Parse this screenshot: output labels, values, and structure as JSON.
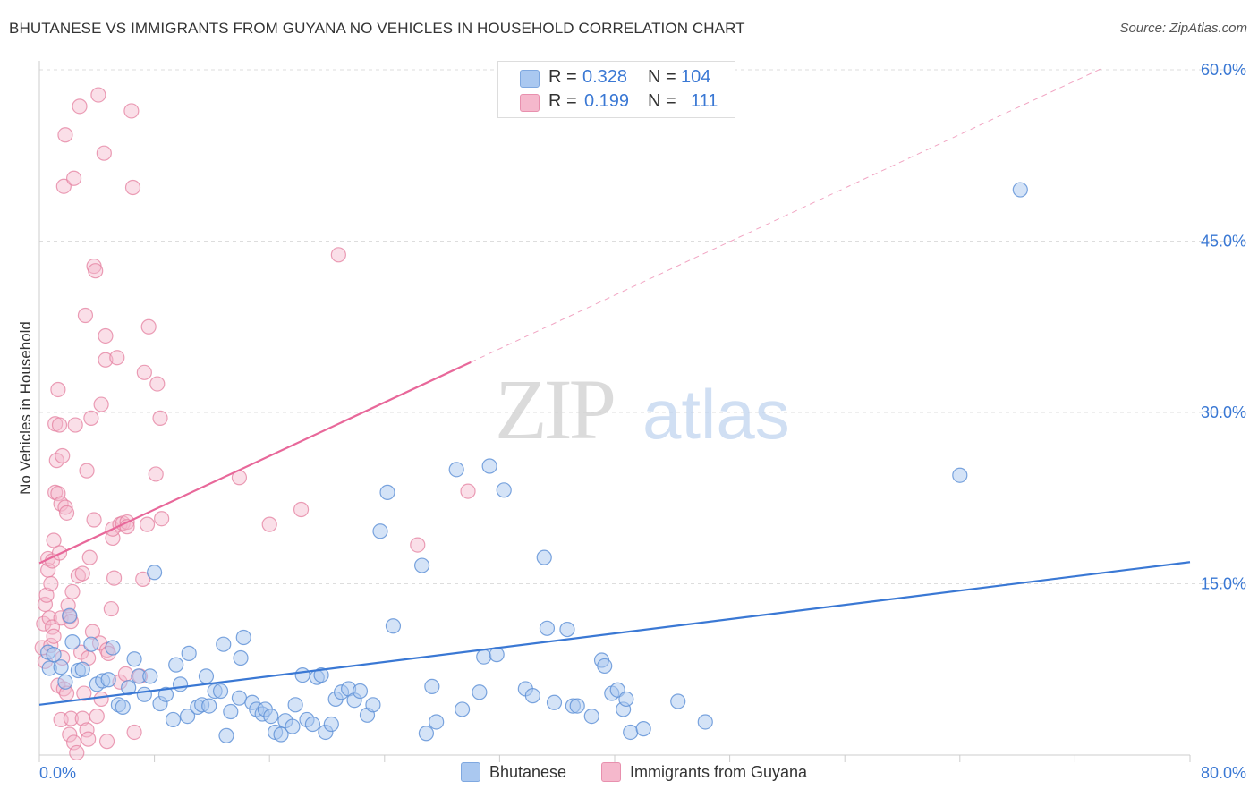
{
  "title": "BHUTANESE VS IMMIGRANTS FROM GUYANA NO VEHICLES IN HOUSEHOLD CORRELATION CHART",
  "source": "Source: ZipAtlas.com",
  "watermark": {
    "zip": "ZIP",
    "atlas": "atlas"
  },
  "legend_top": {
    "rows": [
      {
        "r_label": "R =",
        "r_value": "0.328",
        "n_label": "N =",
        "n_value": "104",
        "color": "#aac8f0"
      },
      {
        "r_label": "R =",
        "r_value": "0.199",
        "n_label": "N =",
        "n_value": "111",
        "color": "#f5b8cc"
      }
    ]
  },
  "legend_bottom": [
    {
      "label": "Bhutanese",
      "color": "#aac8f0"
    },
    {
      "label": "Immigrants from Guyana",
      "color": "#f5b8cc"
    }
  ],
  "chart_data": {
    "type": "scatter",
    "title": "BHUTANESE VS IMMIGRANTS FROM GUYANA NO VEHICLES IN HOUSEHOLD CORRELATION CHART",
    "xlabel": "",
    "ylabel": "No Vehicles in Household",
    "xlim": [
      0,
      80
    ],
    "ylim": [
      0,
      60
    ],
    "x_tick_labels": [
      "0.0%",
      "80.0%"
    ],
    "y_tick_labels": [
      "15.0%",
      "30.0%",
      "45.0%",
      "60.0%"
    ],
    "y_ticks": [
      15,
      30,
      45,
      60
    ],
    "colors": {
      "bhutanese_fill": "#aac8f0",
      "bhutanese_stroke": "#5b8fd6",
      "guyana_fill": "#f5b8cc",
      "guyana_stroke": "#e47f9f",
      "blue_line": "#3a78d4",
      "pink_line": "#e8689a",
      "tick_label": "#3a78d4",
      "grid": "#dddddd"
    },
    "series": [
      {
        "name": "Bhutanese",
        "trend": {
          "x0": 0,
          "y0": 4.4,
          "x1": 80,
          "y1": 16.9
        },
        "points": [
          [
            0.6,
            9.0
          ],
          [
            0.7,
            7.6
          ],
          [
            1.0,
            8.8
          ],
          [
            1.5,
            7.7
          ],
          [
            1.8,
            6.4
          ],
          [
            2.1,
            12.2
          ],
          [
            2.3,
            9.9
          ],
          [
            2.7,
            7.4
          ],
          [
            3.0,
            7.5
          ],
          [
            3.6,
            9.7
          ],
          [
            4.0,
            6.2
          ],
          [
            4.4,
            6.5
          ],
          [
            4.8,
            6.6
          ],
          [
            5.1,
            9.4
          ],
          [
            5.5,
            4.4
          ],
          [
            5.8,
            4.2
          ],
          [
            6.2,
            5.9
          ],
          [
            6.6,
            8.4
          ],
          [
            6.9,
            6.9
          ],
          [
            7.3,
            5.3
          ],
          [
            7.7,
            6.9
          ],
          [
            8.0,
            16.0
          ],
          [
            8.4,
            4.5
          ],
          [
            8.8,
            5.3
          ],
          [
            9.3,
            3.1
          ],
          [
            9.5,
            7.9
          ],
          [
            9.8,
            6.2
          ],
          [
            10.3,
            3.4
          ],
          [
            10.4,
            8.9
          ],
          [
            11.0,
            4.2
          ],
          [
            11.3,
            4.4
          ],
          [
            11.6,
            6.9
          ],
          [
            11.8,
            4.3
          ],
          [
            12.2,
            5.6
          ],
          [
            12.6,
            5.6
          ],
          [
            12.8,
            9.7
          ],
          [
            13.0,
            1.7
          ],
          [
            13.3,
            3.8
          ],
          [
            13.9,
            5.0
          ],
          [
            14.0,
            8.5
          ],
          [
            14.2,
            10.3
          ],
          [
            14.8,
            4.6
          ],
          [
            15.1,
            4.0
          ],
          [
            15.5,
            3.6
          ],
          [
            15.7,
            4.0
          ],
          [
            16.1,
            3.4
          ],
          [
            16.4,
            2.0
          ],
          [
            16.8,
            1.8
          ],
          [
            17.1,
            3.0
          ],
          [
            17.6,
            2.5
          ],
          [
            17.8,
            4.4
          ],
          [
            18.3,
            7.0
          ],
          [
            18.6,
            3.1
          ],
          [
            19.0,
            2.7
          ],
          [
            19.3,
            6.8
          ],
          [
            19.6,
            7.0
          ],
          [
            19.9,
            2.0
          ],
          [
            20.3,
            2.7
          ],
          [
            20.6,
            4.9
          ],
          [
            21.0,
            5.5
          ],
          [
            21.5,
            5.8
          ],
          [
            21.9,
            4.8
          ],
          [
            22.3,
            5.6
          ],
          [
            22.8,
            3.5
          ],
          [
            23.2,
            4.4
          ],
          [
            23.7,
            19.6
          ],
          [
            24.2,
            23.0
          ],
          [
            24.6,
            11.3
          ],
          [
            26.6,
            16.6
          ],
          [
            26.9,
            1.9
          ],
          [
            27.3,
            6.0
          ],
          [
            27.6,
            2.9
          ],
          [
            29.0,
            25.0
          ],
          [
            29.4,
            4.0
          ],
          [
            30.6,
            5.5
          ],
          [
            30.9,
            8.6
          ],
          [
            31.3,
            25.3
          ],
          [
            31.8,
            8.8
          ],
          [
            32.3,
            23.2
          ],
          [
            33.8,
            5.8
          ],
          [
            34.3,
            5.2
          ],
          [
            35.1,
            17.3
          ],
          [
            35.3,
            11.1
          ],
          [
            35.8,
            4.6
          ],
          [
            36.7,
            11.0
          ],
          [
            37.1,
            4.3
          ],
          [
            37.4,
            4.3
          ],
          [
            38.4,
            3.4
          ],
          [
            39.1,
            8.3
          ],
          [
            39.3,
            7.8
          ],
          [
            39.8,
            5.4
          ],
          [
            40.2,
            5.7
          ],
          [
            40.6,
            4.0
          ],
          [
            40.8,
            4.9
          ],
          [
            41.1,
            2.0
          ],
          [
            42.0,
            2.3
          ],
          [
            44.4,
            4.7
          ],
          [
            46.3,
            2.9
          ],
          [
            64.0,
            24.5
          ],
          [
            68.2,
            49.5
          ]
        ]
      },
      {
        "name": "Immigrants from Guyana",
        "trend": {
          "x0": 0,
          "y0": 16.8,
          "x1": 30,
          "y1": 34.4,
          "dash_x1": 74,
          "dash_y1": 60.2
        },
        "points": [
          [
            0.2,
            9.4
          ],
          [
            0.3,
            11.5
          ],
          [
            0.4,
            13.2
          ],
          [
            0.4,
            8.2
          ],
          [
            0.5,
            14.0
          ],
          [
            0.6,
            16.2
          ],
          [
            0.6,
            17.2
          ],
          [
            0.7,
            12.0
          ],
          [
            0.8,
            15.0
          ],
          [
            0.8,
            9.6
          ],
          [
            0.9,
            11.2
          ],
          [
            0.9,
            17.0
          ],
          [
            1.0,
            18.8
          ],
          [
            1.0,
            10.4
          ],
          [
            1.1,
            23.0
          ],
          [
            1.1,
            29.0
          ],
          [
            1.2,
            25.8
          ],
          [
            1.3,
            22.9
          ],
          [
            1.3,
            6.1
          ],
          [
            1.3,
            32.0
          ],
          [
            1.4,
            28.9
          ],
          [
            1.4,
            17.7
          ],
          [
            1.5,
            12.0
          ],
          [
            1.5,
            22.0
          ],
          [
            1.5,
            3.1
          ],
          [
            1.6,
            8.5
          ],
          [
            1.6,
            26.2
          ],
          [
            1.7,
            49.8
          ],
          [
            1.7,
            5.8
          ],
          [
            1.8,
            21.7
          ],
          [
            1.8,
            54.3
          ],
          [
            1.9,
            21.2
          ],
          [
            1.9,
            5.4
          ],
          [
            2.0,
            13.1
          ],
          [
            2.1,
            1.8
          ],
          [
            2.1,
            12.1
          ],
          [
            2.2,
            11.7
          ],
          [
            2.2,
            3.2
          ],
          [
            2.3,
            14.3
          ],
          [
            2.4,
            50.5
          ],
          [
            2.4,
            1.1
          ],
          [
            2.5,
            28.9
          ],
          [
            2.6,
            0.2
          ],
          [
            2.7,
            15.7
          ],
          [
            2.8,
            56.8
          ],
          [
            2.9,
            9.0
          ],
          [
            3.0,
            3.2
          ],
          [
            3.0,
            15.9
          ],
          [
            3.1,
            5.4
          ],
          [
            3.2,
            38.5
          ],
          [
            3.3,
            2.2
          ],
          [
            3.3,
            24.9
          ],
          [
            3.4,
            1.4
          ],
          [
            3.4,
            8.5
          ],
          [
            3.5,
            17.3
          ],
          [
            3.6,
            29.5
          ],
          [
            3.7,
            10.8
          ],
          [
            3.8,
            20.6
          ],
          [
            3.8,
            42.8
          ],
          [
            3.9,
            42.4
          ],
          [
            4.0,
            3.4
          ],
          [
            4.1,
            57.8
          ],
          [
            4.2,
            9.8
          ],
          [
            4.3,
            4.9
          ],
          [
            4.3,
            30.7
          ],
          [
            4.5,
            52.7
          ],
          [
            4.6,
            34.6
          ],
          [
            4.6,
            36.7
          ],
          [
            4.7,
            9.2
          ],
          [
            4.7,
            1.2
          ],
          [
            4.8,
            8.9
          ],
          [
            5.0,
            12.8
          ],
          [
            5.1,
            19.0
          ],
          [
            5.1,
            19.8
          ],
          [
            5.2,
            15.5
          ],
          [
            5.4,
            34.8
          ],
          [
            5.6,
            20.2
          ],
          [
            5.6,
            6.4
          ],
          [
            5.8,
            20.3
          ],
          [
            6.0,
            7.1
          ],
          [
            6.1,
            20.4
          ],
          [
            6.1,
            20.0
          ],
          [
            6.4,
            56.4
          ],
          [
            6.5,
            49.7
          ],
          [
            6.6,
            2.0
          ],
          [
            7.0,
            6.9
          ],
          [
            7.2,
            15.4
          ],
          [
            7.3,
            33.5
          ],
          [
            7.5,
            20.2
          ],
          [
            7.6,
            37.5
          ],
          [
            8.1,
            24.6
          ],
          [
            8.2,
            32.5
          ],
          [
            8.4,
            29.5
          ],
          [
            8.5,
            20.7
          ],
          [
            13.9,
            24.3
          ],
          [
            16.0,
            20.2
          ],
          [
            18.2,
            21.5
          ],
          [
            20.8,
            43.8
          ],
          [
            26.3,
            18.4
          ],
          [
            29.8,
            23.1
          ]
        ]
      }
    ]
  }
}
